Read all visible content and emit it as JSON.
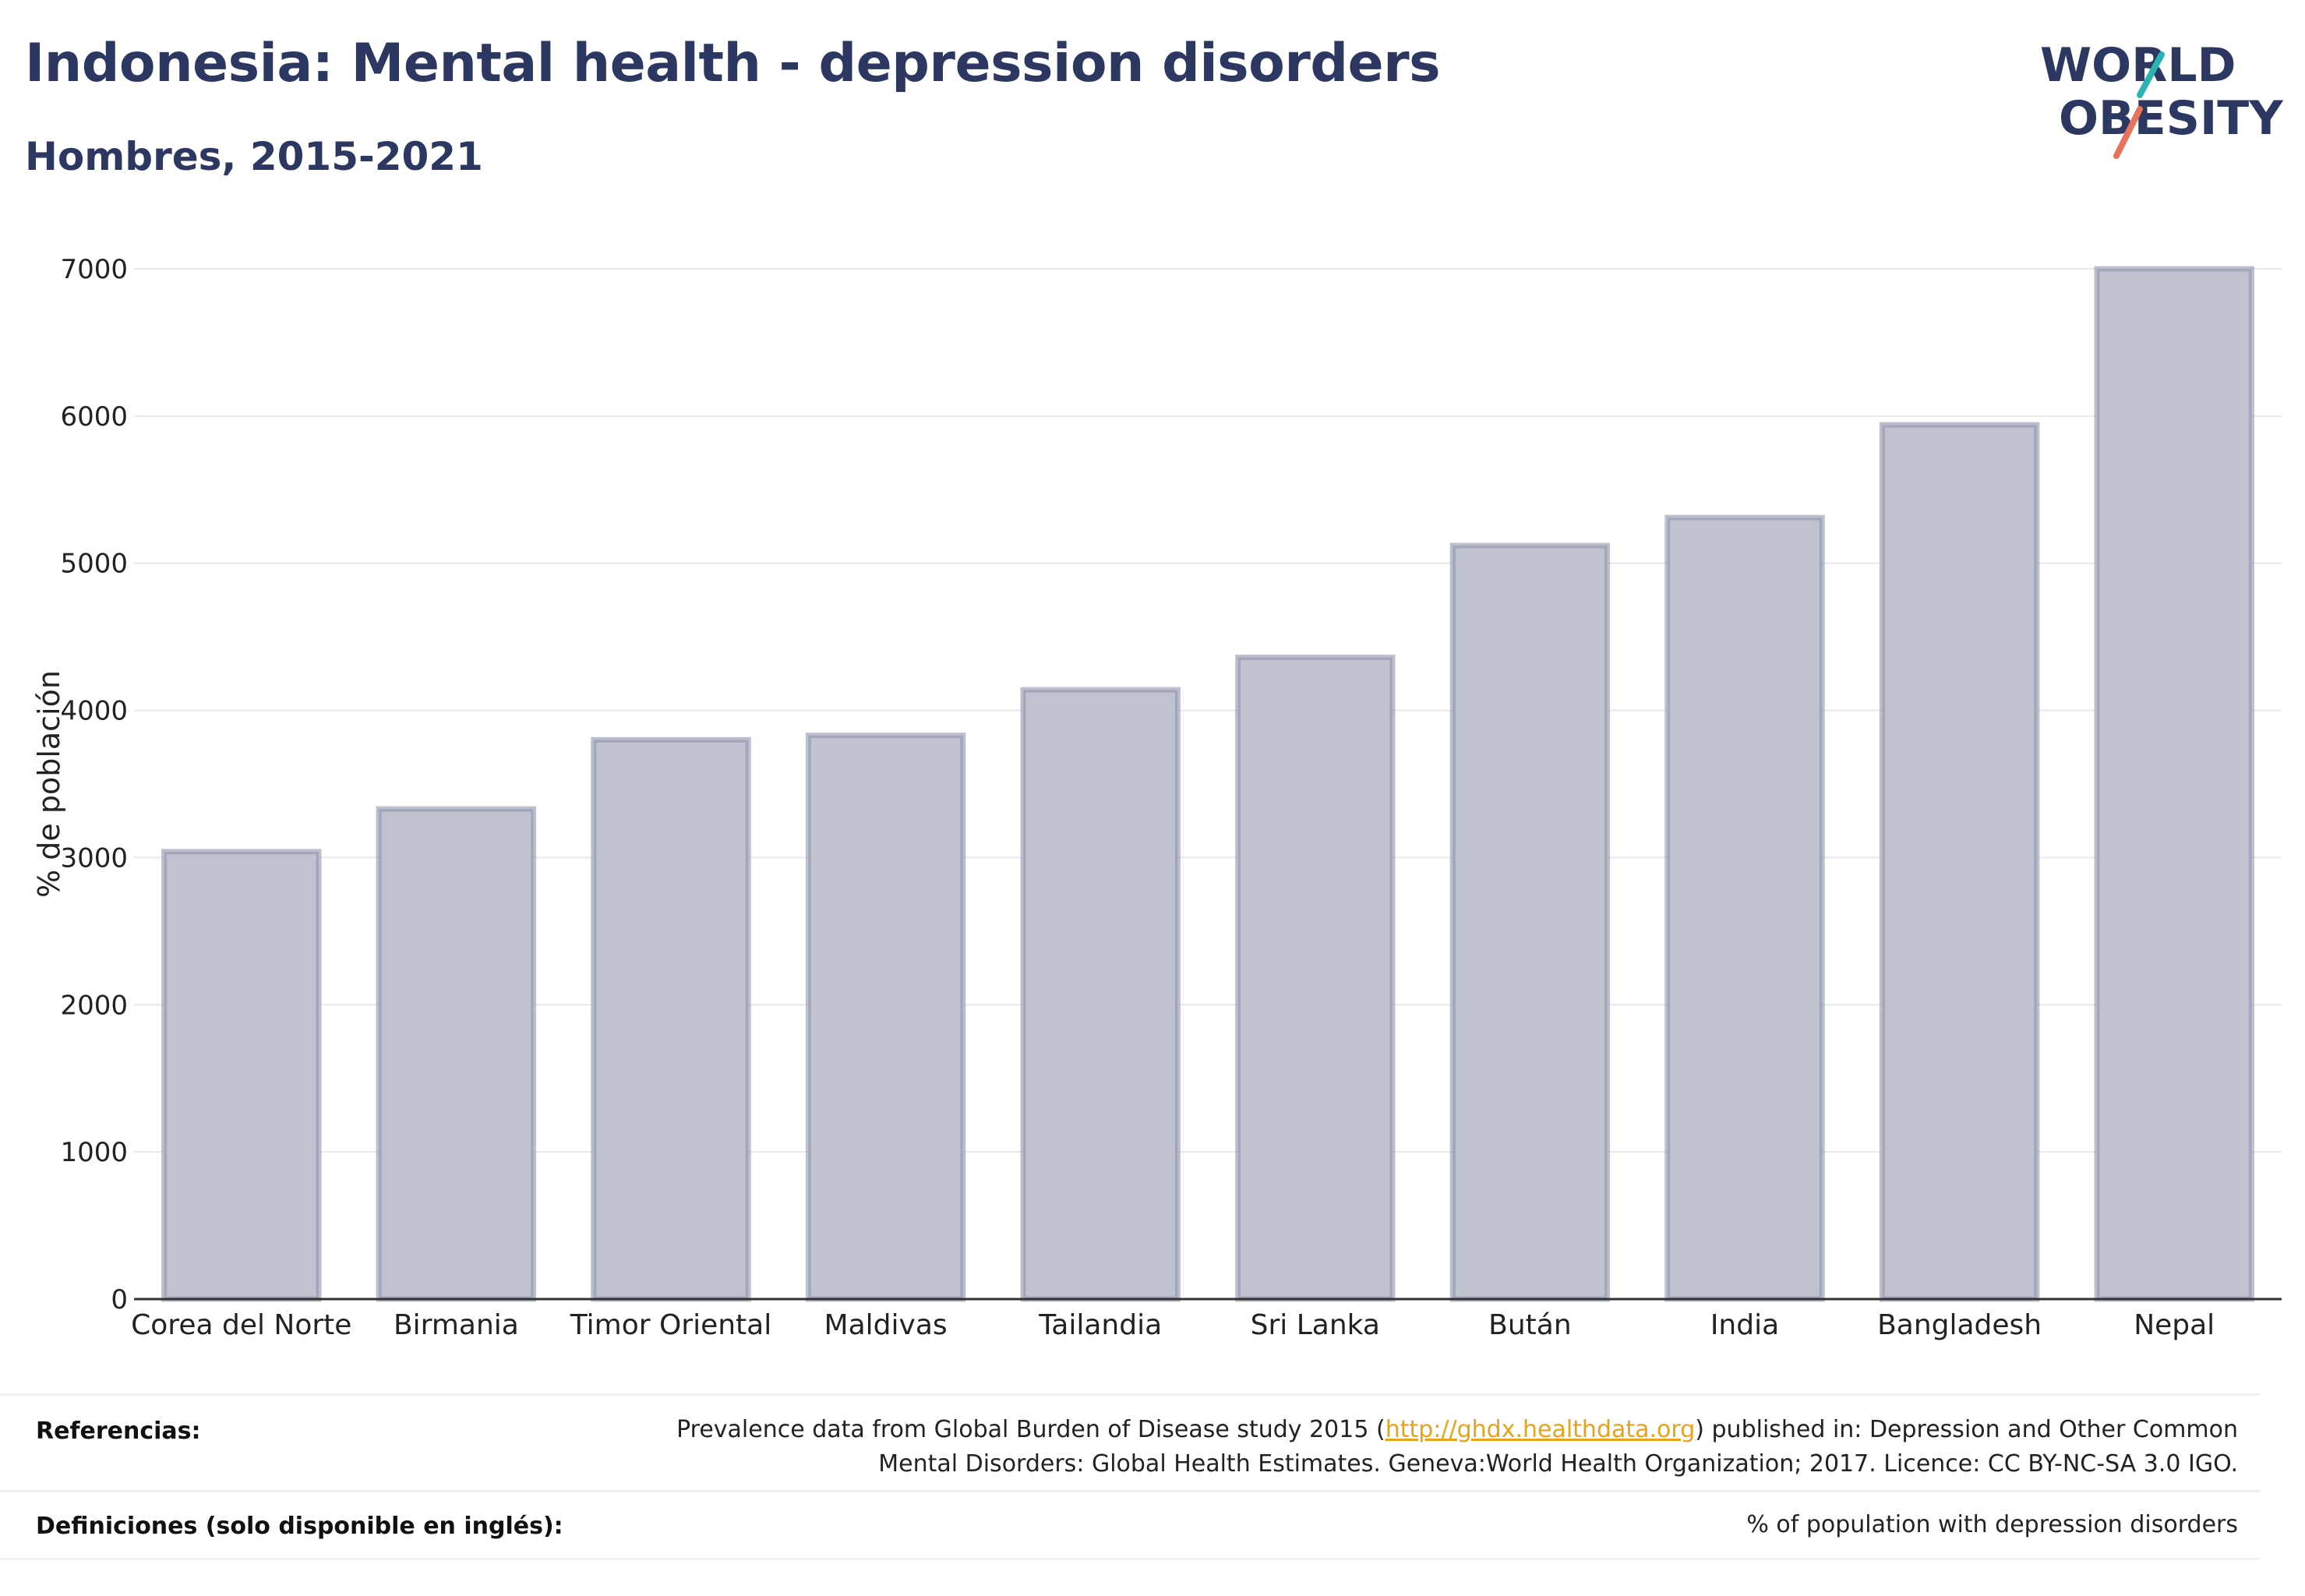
{
  "title": "Indonesia: Mental health - depression disorders",
  "subtitle": "Hombres, 2015-2021",
  "logo": {
    "line1": "WORLD",
    "line2": "OBESITY",
    "colors": {
      "text": "#2c3862",
      "teal": "#2ab3b1",
      "coral": "#e8735a"
    }
  },
  "colors": {
    "bar_fill": "#bfc2cf",
    "bar_stroke": "#8f95ae",
    "grid": "#e6e8ee",
    "axis": "#333333"
  },
  "chart_data": {
    "type": "bar",
    "title": "",
    "xlabel": "",
    "ylabel": "% de población",
    "categories": [
      "Corea del Norte",
      "Birmania",
      "Timor Oriental",
      "Maldivas",
      "Tailandia",
      "Sri Lanka",
      "Bután",
      "India",
      "Bangladesh",
      "Nepal"
    ],
    "values": [
      3040,
      3330,
      3800,
      3830,
      4140,
      4360,
      5120,
      5310,
      5940,
      7000
    ],
    "ylim": [
      0,
      7000
    ],
    "yticks": [
      0,
      1000,
      2000,
      3000,
      4000,
      5000,
      6000,
      7000
    ],
    "grid": true
  },
  "references": {
    "label": "Referencias:",
    "text_before": "Prevalence data from Global Burden of Disease study 2015 (",
    "link": "http://ghdx.healthdata.org",
    "text_after": ") published in: Depression and Other Common",
    "line2": "Mental Disorders: Global Health Estimates. Geneva:World Health Organization; 2017. Licence: CC BY-NC-SA 3.0 IGO."
  },
  "definitions": {
    "label": "Definiciones (solo disponible en inglés):",
    "text": "% of population with depression disorders"
  }
}
